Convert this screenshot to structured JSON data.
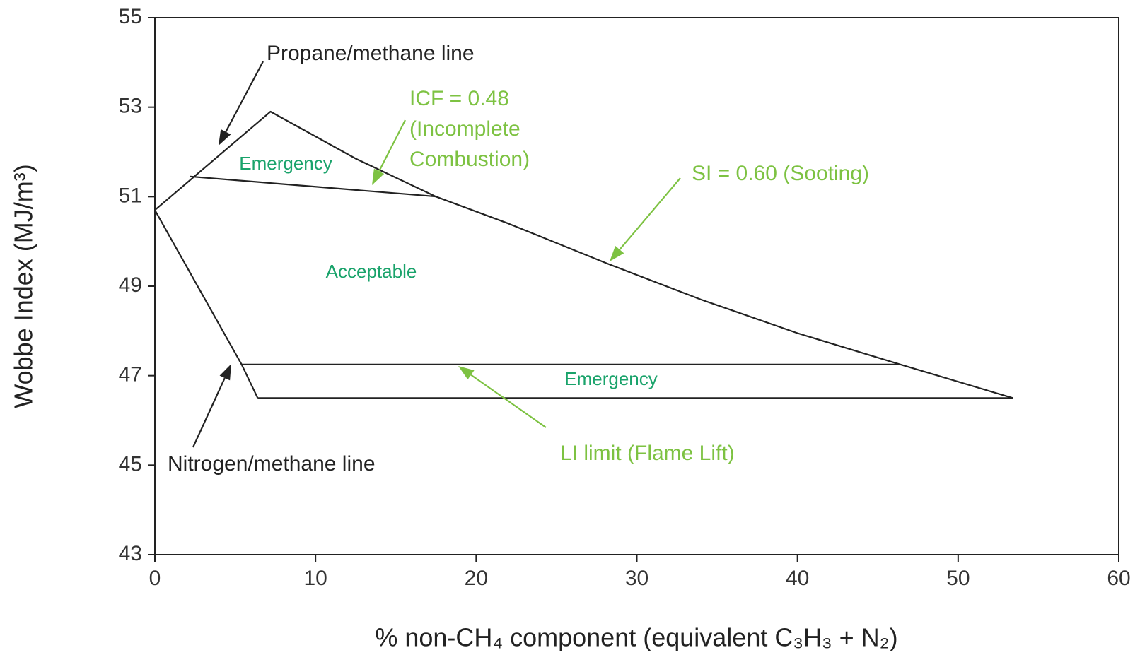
{
  "chart_data": {
    "type": "line",
    "xlabel": "% non-CH₄ component (equivalent C₃H₃ + N₂)",
    "ylabel": "Wobbe Index (MJ/m³)",
    "xlim": [
      0,
      60
    ],
    "xticks": [
      0,
      10,
      20,
      30,
      40,
      50,
      60
    ],
    "ylim": [
      43,
      55
    ],
    "yticks": [
      43,
      45,
      47,
      49,
      51,
      53,
      55
    ],
    "grid": false,
    "series": [
      {
        "color": "#222222",
        "x": [
          0,
          7.2,
          12.5,
          17.5,
          22,
          28.2,
          34,
          40,
          46.4,
          53.4
        ],
        "values": [
          50.7,
          52.9,
          51.85,
          51.0,
          50.4,
          49.5,
          48.7,
          47.95,
          47.25,
          46.5
        ]
      },
      {
        "color": "#222222",
        "x": [
          2.2,
          17.6
        ],
        "values": [
          51.45,
          51.0
        ]
      },
      {
        "color": "#222222",
        "x": [
          0,
          5.4,
          6.4
        ],
        "values": [
          50.7,
          47.25,
          46.5
        ]
      },
      {
        "color": "#222222",
        "x": [
          5.4,
          46.4
        ],
        "values": [
          47.25,
          47.25
        ]
      },
      {
        "color": "#222222",
        "x": [
          6.4,
          53.4
        ],
        "values": [
          46.5,
          46.5
        ]
      }
    ],
    "annotations": [
      {
        "lines": [
          "Propane/methane line"
        ],
        "color": "#222222"
      },
      {
        "lines": [
          "ICF = 0.48",
          "(Incomplete",
          "Combustion)"
        ],
        "color": "#7dc242"
      },
      {
        "lines": [
          "SI = 0.60 (Sooting)"
        ],
        "color": "#7dc242"
      },
      {
        "lines": [
          "Nitrogen/methane line"
        ],
        "color": "#222222"
      },
      {
        "lines": [
          "LI limit (Flame Lift)"
        ],
        "color": "#7dc242"
      }
    ],
    "regions": [
      "Emergency",
      "Acceptable",
      "Emergency"
    ]
  }
}
